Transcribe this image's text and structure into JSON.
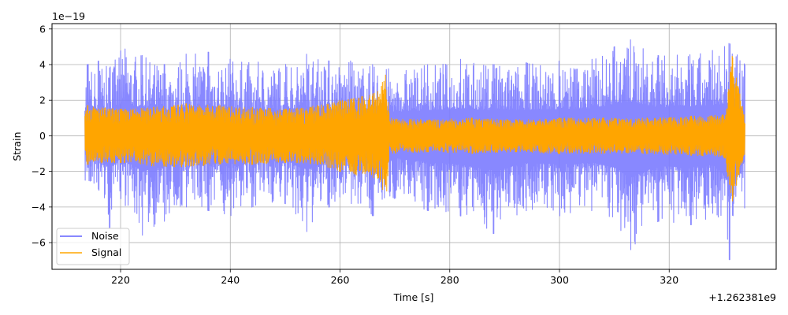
{
  "chart_data": {
    "type": "line",
    "title": "",
    "xlabel": "Time [s]",
    "ylabel": "Strain",
    "x_offset_label": "+1.262381e9",
    "y_scale_label": "1e−19",
    "xlim": [
      207.5,
      339.5
    ],
    "ylim": [
      -7.5,
      6.3
    ],
    "x_ticks": [
      220,
      240,
      260,
      280,
      300,
      320
    ],
    "y_ticks": [
      -6,
      -4,
      -2,
      0,
      2,
      4,
      6
    ],
    "x_tick_labels": [
      "220",
      "240",
      "260",
      "280",
      "300",
      "320"
    ],
    "y_tick_labels": [
      "−6",
      "−4",
      "−2",
      "0",
      "2",
      "4",
      "6"
    ],
    "grid": true,
    "legend_position": "lower-left",
    "series": [
      {
        "name": "Noise",
        "color": "#7b7bff",
        "x_range": [
          213.5,
          333.8
        ],
        "amplitude_envelope": [
          {
            "x": 214,
            "pos": 4.0,
            "neg": -2.8
          },
          {
            "x": 216,
            "pos": 4.2,
            "neg": -3.0
          },
          {
            "x": 218,
            "pos": 3.8,
            "neg": -5.2
          },
          {
            "x": 220,
            "pos": 5.1,
            "neg": -3.5
          },
          {
            "x": 224,
            "pos": 4.5,
            "neg": -5.6
          },
          {
            "x": 228,
            "pos": 4.0,
            "neg": -4.8
          },
          {
            "x": 232,
            "pos": 4.6,
            "neg": -4.0
          },
          {
            "x": 236,
            "pos": 4.7,
            "neg": -4.2
          },
          {
            "x": 240,
            "pos": 4.3,
            "neg": -4.5
          },
          {
            "x": 244,
            "pos": 4.2,
            "neg": -4.0
          },
          {
            "x": 250,
            "pos": 4.0,
            "neg": -3.8
          },
          {
            "x": 254,
            "pos": 4.6,
            "neg": -5.4
          },
          {
            "x": 258,
            "pos": 4.2,
            "neg": -4.0
          },
          {
            "x": 262,
            "pos": 4.2,
            "neg": -3.8
          },
          {
            "x": 266,
            "pos": 4.0,
            "neg": -4.5
          },
          {
            "x": 270,
            "pos": 3.8,
            "neg": -3.5
          },
          {
            "x": 276,
            "pos": 4.0,
            "neg": -4.2
          },
          {
            "x": 282,
            "pos": 4.3,
            "neg": -4.5
          },
          {
            "x": 288,
            "pos": 4.0,
            "neg": -5.5
          },
          {
            "x": 294,
            "pos": 4.1,
            "neg": -4.2
          },
          {
            "x": 300,
            "pos": 4.2,
            "neg": -4.5
          },
          {
            "x": 306,
            "pos": 4.3,
            "neg": -4.2
          },
          {
            "x": 310,
            "pos": 5.0,
            "neg": -5.0
          },
          {
            "x": 313,
            "pos": 5.4,
            "neg": -6.4
          },
          {
            "x": 318,
            "pos": 4.5,
            "neg": -4.8
          },
          {
            "x": 324,
            "pos": 4.6,
            "neg": -5.0
          },
          {
            "x": 328,
            "pos": 4.8,
            "neg": -4.6
          },
          {
            "x": 331,
            "pos": 5.2,
            "neg": -7.0
          },
          {
            "x": 333.8,
            "pos": 4.0,
            "neg": -4.0
          }
        ]
      },
      {
        "name": "Signal",
        "color": "#ffa500",
        "x_range": [
          213.5,
          333.8
        ],
        "amplitude_envelope": [
          {
            "x": 214,
            "pos": 1.7,
            "neg": -1.6
          },
          {
            "x": 220,
            "pos": 1.5,
            "neg": -1.5
          },
          {
            "x": 226,
            "pos": 1.6,
            "neg": -1.7
          },
          {
            "x": 232,
            "pos": 1.8,
            "neg": -1.8
          },
          {
            "x": 238,
            "pos": 1.7,
            "neg": -1.6
          },
          {
            "x": 244,
            "pos": 1.6,
            "neg": -1.6
          },
          {
            "x": 250,
            "pos": 1.5,
            "neg": -1.5
          },
          {
            "x": 256,
            "pos": 1.7,
            "neg": -1.6
          },
          {
            "x": 260,
            "pos": 2.0,
            "neg": -2.0
          },
          {
            "x": 264,
            "pos": 2.2,
            "neg": -2.3
          },
          {
            "x": 267,
            "pos": 2.5,
            "neg": -2.5
          },
          {
            "x": 268.4,
            "pos": 3.5,
            "neg": -3.6
          },
          {
            "x": 269,
            "pos": 1.0,
            "neg": -1.0
          },
          {
            "x": 276,
            "pos": 0.9,
            "neg": -0.9
          },
          {
            "x": 284,
            "pos": 1.0,
            "neg": -1.0
          },
          {
            "x": 292,
            "pos": 0.9,
            "neg": -0.9
          },
          {
            "x": 300,
            "pos": 1.0,
            "neg": -1.0
          },
          {
            "x": 308,
            "pos": 1.0,
            "neg": -1.0
          },
          {
            "x": 316,
            "pos": 1.0,
            "neg": -1.0
          },
          {
            "x": 324,
            "pos": 1.1,
            "neg": -1.1
          },
          {
            "x": 330,
            "pos": 1.2,
            "neg": -1.2
          },
          {
            "x": 331.5,
            "pos": 4.5,
            "neg": -3.7
          },
          {
            "x": 333.8,
            "pos": 1.0,
            "neg": -1.0
          }
        ]
      }
    ]
  }
}
